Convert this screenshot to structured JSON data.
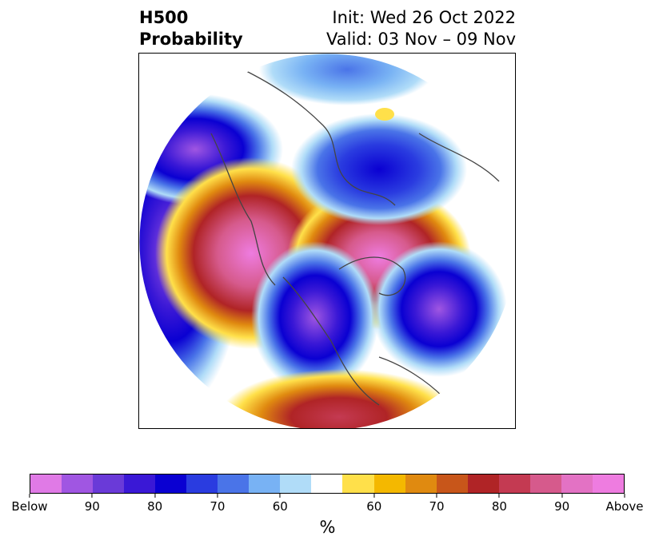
{
  "title": {
    "left_line1": "H500",
    "left_line2": "Probability",
    "right_line1": "Init: Wed 26 Oct 2022",
    "right_line2": "Valid: 03 Nov – 09 Nov"
  },
  "colorbar": {
    "colors": [
      "#e07ae6",
      "#a056e2",
      "#6a3ad8",
      "#3a18d6",
      "#0a00d2",
      "#2a3ce0",
      "#4a74e8",
      "#78b2f4",
      "#b0dcf8",
      "#ffffff",
      "#ffe04a",
      "#f4b800",
      "#e08a10",
      "#c8561a",
      "#b02426",
      "#c43a52",
      "#d65a8c",
      "#e372c4",
      "#ee7ce0"
    ],
    "tick_labels": [
      "Below",
      "90",
      "80",
      "70",
      "60",
      "60",
      "70",
      "80",
      "90",
      "Above"
    ],
    "units_label": "%"
  }
}
